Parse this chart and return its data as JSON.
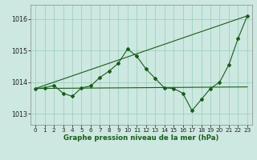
{
  "xlabel": "Graphe pression niveau de la mer (hPa)",
  "bg_color": "#cce8e0",
  "grid_color": "#99ccbb",
  "line_color": "#1a5c1a",
  "x_ticks": [
    0,
    1,
    2,
    3,
    4,
    5,
    6,
    7,
    8,
    9,
    10,
    11,
    12,
    13,
    14,
    15,
    16,
    17,
    18,
    19,
    20,
    21,
    22,
    23
  ],
  "xlim": [
    -0.5,
    23.5
  ],
  "ylim": [
    1012.65,
    1016.45
  ],
  "yticks": [
    1013,
    1014,
    1015,
    1016
  ],
  "flat_line_x": [
    0,
    23
  ],
  "flat_line_y": [
    1013.8,
    1013.85
  ],
  "diag_line_x": [
    0,
    23
  ],
  "diag_line_y": [
    1013.8,
    1016.1
  ],
  "main_x": [
    0,
    1,
    2,
    3,
    4,
    5,
    6,
    7,
    8,
    9,
    10,
    11,
    12,
    13,
    14,
    15,
    16,
    17,
    18,
    19,
    20,
    21,
    22,
    23
  ],
  "main_y": [
    1013.8,
    1013.82,
    1013.9,
    1013.65,
    1013.55,
    1013.82,
    1013.88,
    1014.15,
    1014.35,
    1014.6,
    1015.05,
    1014.82,
    1014.42,
    1014.12,
    1013.82,
    1013.8,
    1013.65,
    1013.1,
    1013.45,
    1013.8,
    1014.0,
    1014.55,
    1015.38,
    1016.1
  ]
}
